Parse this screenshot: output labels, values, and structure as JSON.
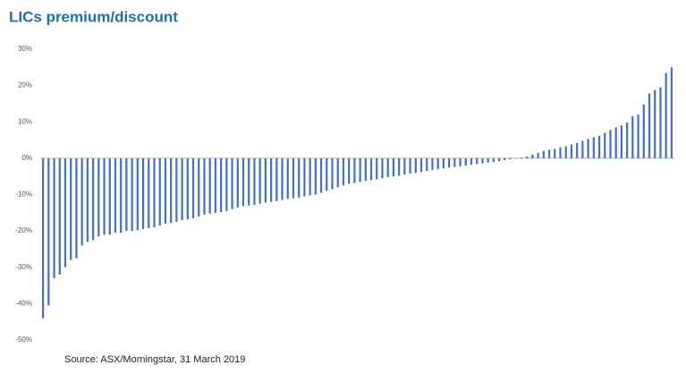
{
  "chart_data": {
    "type": "bar",
    "title": "LICs premium/discount",
    "source": "Source: ASX/Morningstar, 31 March 2019",
    "categories": [
      null,
      null,
      null,
      null,
      null,
      null,
      null,
      null,
      null,
      null,
      null,
      null,
      null,
      null,
      null,
      null,
      null,
      null,
      null,
      null,
      null,
      null,
      null,
      null,
      null,
      null,
      null,
      null,
      null,
      null,
      null,
      null,
      null,
      null,
      null,
      null,
      null,
      null,
      null,
      null,
      null,
      null,
      null,
      null,
      null,
      null,
      null,
      null,
      null,
      null,
      null,
      null,
      null,
      null,
      null,
      null,
      null,
      null,
      null,
      null,
      null,
      null,
      null,
      null,
      null,
      null,
      null,
      null,
      null,
      null,
      null,
      null,
      null,
      null,
      null,
      null,
      null,
      null,
      null,
      null,
      null,
      null,
      null,
      null,
      null,
      null,
      null,
      null,
      null,
      null,
      null,
      null,
      null,
      null,
      null,
      null,
      null,
      null,
      null,
      null,
      null,
      null,
      null,
      null,
      null,
      null,
      null,
      null,
      null,
      null,
      null,
      null,
      null,
      null
    ],
    "values": [
      -44,
      -40.5,
      -33,
      -32,
      -30,
      -28,
      -27.5,
      -24,
      -23,
      -22.5,
      -21.5,
      -21,
      -21,
      -20.5,
      -20.5,
      -20,
      -20,
      -19.8,
      -19.5,
      -19.2,
      -19,
      -18.5,
      -18,
      -17.8,
      -17.5,
      -17,
      -16.8,
      -16.5,
      -16,
      -15.5,
      -15.2,
      -15,
      -14.8,
      -14.5,
      -14,
      -13.5,
      -13.2,
      -13,
      -12.8,
      -12.5,
      -12.2,
      -12,
      -11.8,
      -11.5,
      -11.2,
      -11,
      -10.8,
      -10.5,
      -10.2,
      -10,
      -9.5,
      -9,
      -8.5,
      -8,
      -7.5,
      -7,
      -6.8,
      -6.5,
      -6.2,
      -6,
      -5.8,
      -5.5,
      -5.2,
      -5,
      -4.8,
      -4.5,
      -4.2,
      -4,
      -3.8,
      -3.5,
      -3.2,
      -3,
      -2.8,
      -2.6,
      -2.4,
      -2.2,
      -2,
      -1.8,
      -1.6,
      -1.4,
      -1.2,
      -1,
      -0.8,
      -0.5,
      -0.3,
      -0.1,
      0.2,
      0.5,
      1,
      1.5,
      2,
      2.3,
      2.6,
      3,
      3.3,
      3.8,
      4.2,
      4.8,
      5.3,
      5.8,
      6.2,
      7,
      7.8,
      8.5,
      9,
      9.8,
      11.5,
      12,
      14.8,
      17.8,
      18.8,
      19.5,
      23.5,
      25
    ],
    "color": "#4472c4",
    "ylim": [
      -50,
      30
    ],
    "yticks": [
      {
        "value": -50,
        "label": "-50%"
      },
      {
        "value": -40,
        "label": "-40%"
      },
      {
        "value": -30,
        "label": "-30%"
      },
      {
        "value": -20,
        "label": "-20%"
      },
      {
        "value": -10,
        "label": "-10%"
      },
      {
        "value": 0,
        "label": "0%"
      },
      {
        "value": 10,
        "label": "10%"
      },
      {
        "value": 20,
        "label": "20%"
      },
      {
        "value": 30,
        "label": "30%"
      }
    ],
    "grid": false
  }
}
